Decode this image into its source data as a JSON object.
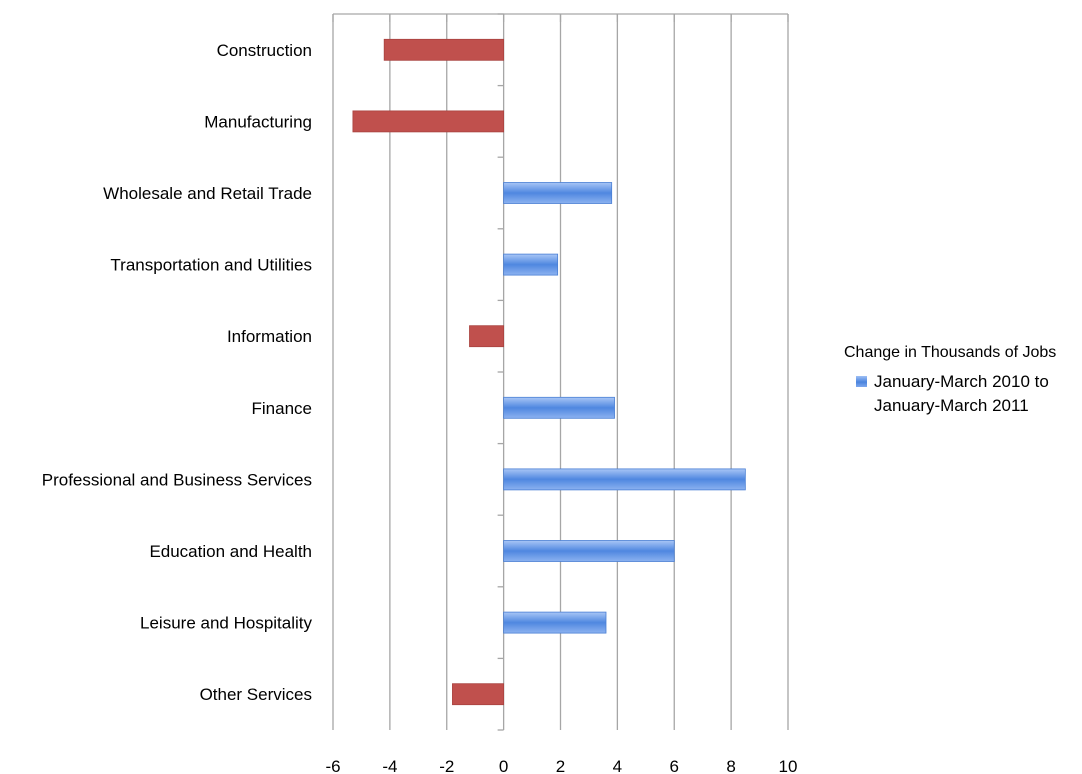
{
  "chart_data": {
    "type": "bar",
    "orientation": "horizontal",
    "categories": [
      "Construction",
      "Manufacturing",
      "Wholesale and Retail Trade",
      "Transportation and Utilities",
      "Information",
      "Finance",
      "Professional and Business Services",
      "Education and Health",
      "Leisure and Hospitality",
      "Other Services"
    ],
    "values": [
      -4.2,
      -5.3,
      3.8,
      1.9,
      -1.2,
      3.9,
      8.5,
      6.0,
      3.6,
      -1.8
    ],
    "xlim": [
      -6,
      10
    ],
    "xticks": [
      "-6",
      "-4",
      "-2",
      "0",
      "2",
      "4",
      "6",
      "8",
      "10"
    ],
    "grid": true,
    "colors": {
      "positive": "#5b8ee6",
      "negative": "#c0504d"
    },
    "legend": {
      "title": "Change in Thousands of Jobs",
      "entries": [
        "January-March 2010 to January-March 2011"
      ],
      "position": "right"
    }
  }
}
